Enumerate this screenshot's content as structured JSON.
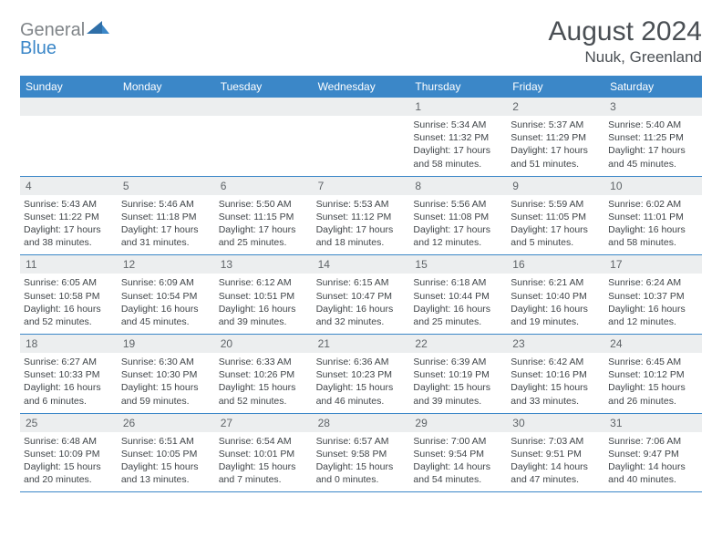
{
  "brand": {
    "part1": "General",
    "part2": "Blue"
  },
  "header": {
    "month_title": "August 2024",
    "location": "Nuuk, Greenland"
  },
  "colors": {
    "header_bar": "#3b87c8",
    "day_number_bg": "#eceeef",
    "week_border": "#3b87c8",
    "text": "#333333",
    "title_text": "#4a4f54"
  },
  "days_of_week": [
    "Sunday",
    "Monday",
    "Tuesday",
    "Wednesday",
    "Thursday",
    "Friday",
    "Saturday"
  ],
  "weeks": [
    [
      {
        "day": "",
        "sunrise": "",
        "sunset": "",
        "daylight": ""
      },
      {
        "day": "",
        "sunrise": "",
        "sunset": "",
        "daylight": ""
      },
      {
        "day": "",
        "sunrise": "",
        "sunset": "",
        "daylight": ""
      },
      {
        "day": "",
        "sunrise": "",
        "sunset": "",
        "daylight": ""
      },
      {
        "day": "1",
        "sunrise": "Sunrise: 5:34 AM",
        "sunset": "Sunset: 11:32 PM",
        "daylight": "Daylight: 17 hours and 58 minutes."
      },
      {
        "day": "2",
        "sunrise": "Sunrise: 5:37 AM",
        "sunset": "Sunset: 11:29 PM",
        "daylight": "Daylight: 17 hours and 51 minutes."
      },
      {
        "day": "3",
        "sunrise": "Sunrise: 5:40 AM",
        "sunset": "Sunset: 11:25 PM",
        "daylight": "Daylight: 17 hours and 45 minutes."
      }
    ],
    [
      {
        "day": "4",
        "sunrise": "Sunrise: 5:43 AM",
        "sunset": "Sunset: 11:22 PM",
        "daylight": "Daylight: 17 hours and 38 minutes."
      },
      {
        "day": "5",
        "sunrise": "Sunrise: 5:46 AM",
        "sunset": "Sunset: 11:18 PM",
        "daylight": "Daylight: 17 hours and 31 minutes."
      },
      {
        "day": "6",
        "sunrise": "Sunrise: 5:50 AM",
        "sunset": "Sunset: 11:15 PM",
        "daylight": "Daylight: 17 hours and 25 minutes."
      },
      {
        "day": "7",
        "sunrise": "Sunrise: 5:53 AM",
        "sunset": "Sunset: 11:12 PM",
        "daylight": "Daylight: 17 hours and 18 minutes."
      },
      {
        "day": "8",
        "sunrise": "Sunrise: 5:56 AM",
        "sunset": "Sunset: 11:08 PM",
        "daylight": "Daylight: 17 hours and 12 minutes."
      },
      {
        "day": "9",
        "sunrise": "Sunrise: 5:59 AM",
        "sunset": "Sunset: 11:05 PM",
        "daylight": "Daylight: 17 hours and 5 minutes."
      },
      {
        "day": "10",
        "sunrise": "Sunrise: 6:02 AM",
        "sunset": "Sunset: 11:01 PM",
        "daylight": "Daylight: 16 hours and 58 minutes."
      }
    ],
    [
      {
        "day": "11",
        "sunrise": "Sunrise: 6:05 AM",
        "sunset": "Sunset: 10:58 PM",
        "daylight": "Daylight: 16 hours and 52 minutes."
      },
      {
        "day": "12",
        "sunrise": "Sunrise: 6:09 AM",
        "sunset": "Sunset: 10:54 PM",
        "daylight": "Daylight: 16 hours and 45 minutes."
      },
      {
        "day": "13",
        "sunrise": "Sunrise: 6:12 AM",
        "sunset": "Sunset: 10:51 PM",
        "daylight": "Daylight: 16 hours and 39 minutes."
      },
      {
        "day": "14",
        "sunrise": "Sunrise: 6:15 AM",
        "sunset": "Sunset: 10:47 PM",
        "daylight": "Daylight: 16 hours and 32 minutes."
      },
      {
        "day": "15",
        "sunrise": "Sunrise: 6:18 AM",
        "sunset": "Sunset: 10:44 PM",
        "daylight": "Daylight: 16 hours and 25 minutes."
      },
      {
        "day": "16",
        "sunrise": "Sunrise: 6:21 AM",
        "sunset": "Sunset: 10:40 PM",
        "daylight": "Daylight: 16 hours and 19 minutes."
      },
      {
        "day": "17",
        "sunrise": "Sunrise: 6:24 AM",
        "sunset": "Sunset: 10:37 PM",
        "daylight": "Daylight: 16 hours and 12 minutes."
      }
    ],
    [
      {
        "day": "18",
        "sunrise": "Sunrise: 6:27 AM",
        "sunset": "Sunset: 10:33 PM",
        "daylight": "Daylight: 16 hours and 6 minutes."
      },
      {
        "day": "19",
        "sunrise": "Sunrise: 6:30 AM",
        "sunset": "Sunset: 10:30 PM",
        "daylight": "Daylight: 15 hours and 59 minutes."
      },
      {
        "day": "20",
        "sunrise": "Sunrise: 6:33 AM",
        "sunset": "Sunset: 10:26 PM",
        "daylight": "Daylight: 15 hours and 52 minutes."
      },
      {
        "day": "21",
        "sunrise": "Sunrise: 6:36 AM",
        "sunset": "Sunset: 10:23 PM",
        "daylight": "Daylight: 15 hours and 46 minutes."
      },
      {
        "day": "22",
        "sunrise": "Sunrise: 6:39 AM",
        "sunset": "Sunset: 10:19 PM",
        "daylight": "Daylight: 15 hours and 39 minutes."
      },
      {
        "day": "23",
        "sunrise": "Sunrise: 6:42 AM",
        "sunset": "Sunset: 10:16 PM",
        "daylight": "Daylight: 15 hours and 33 minutes."
      },
      {
        "day": "24",
        "sunrise": "Sunrise: 6:45 AM",
        "sunset": "Sunset: 10:12 PM",
        "daylight": "Daylight: 15 hours and 26 minutes."
      }
    ],
    [
      {
        "day": "25",
        "sunrise": "Sunrise: 6:48 AM",
        "sunset": "Sunset: 10:09 PM",
        "daylight": "Daylight: 15 hours and 20 minutes."
      },
      {
        "day": "26",
        "sunrise": "Sunrise: 6:51 AM",
        "sunset": "Sunset: 10:05 PM",
        "daylight": "Daylight: 15 hours and 13 minutes."
      },
      {
        "day": "27",
        "sunrise": "Sunrise: 6:54 AM",
        "sunset": "Sunset: 10:01 PM",
        "daylight": "Daylight: 15 hours and 7 minutes."
      },
      {
        "day": "28",
        "sunrise": "Sunrise: 6:57 AM",
        "sunset": "Sunset: 9:58 PM",
        "daylight": "Daylight: 15 hours and 0 minutes."
      },
      {
        "day": "29",
        "sunrise": "Sunrise: 7:00 AM",
        "sunset": "Sunset: 9:54 PM",
        "daylight": "Daylight: 14 hours and 54 minutes."
      },
      {
        "day": "30",
        "sunrise": "Sunrise: 7:03 AM",
        "sunset": "Sunset: 9:51 PM",
        "daylight": "Daylight: 14 hours and 47 minutes."
      },
      {
        "day": "31",
        "sunrise": "Sunrise: 7:06 AM",
        "sunset": "Sunset: 9:47 PM",
        "daylight": "Daylight: 14 hours and 40 minutes."
      }
    ]
  ]
}
